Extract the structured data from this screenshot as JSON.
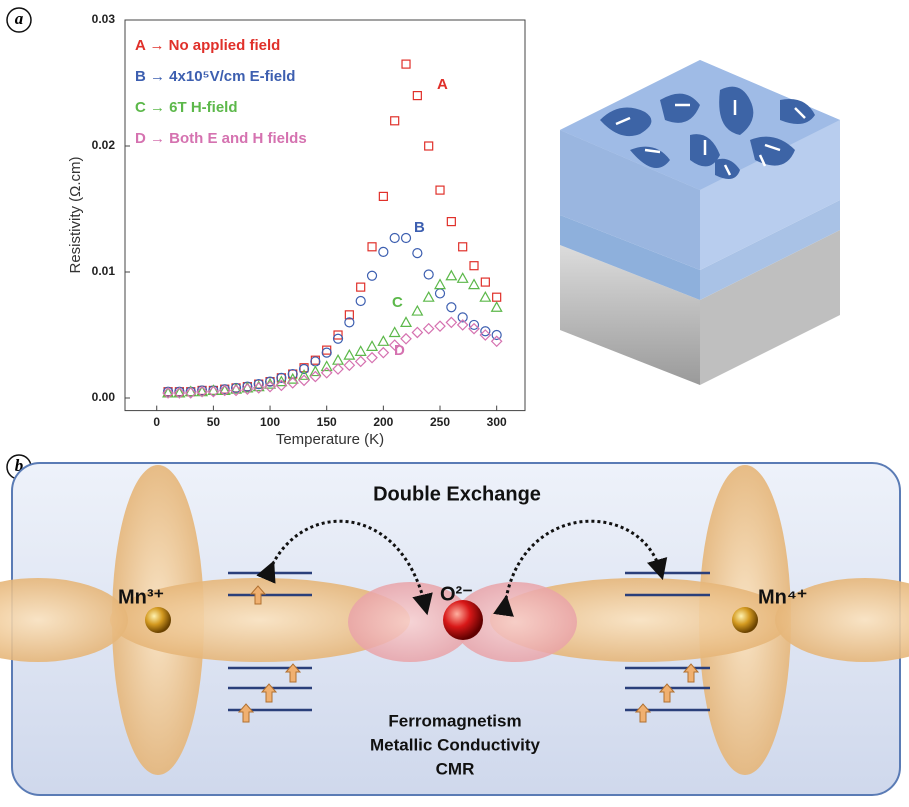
{
  "chart_data": {
    "type": "scatter",
    "xlabel": "Temperature (K)",
    "ylabel": "Resistivity (Ω.cm)",
    "x": [
      10,
      20,
      30,
      40,
      50,
      60,
      70,
      80,
      90,
      100,
      110,
      120,
      130,
      140,
      150,
      160,
      170,
      180,
      190,
      200,
      210,
      220,
      230,
      240,
      250,
      260,
      270,
      280,
      290,
      300
    ],
    "series": [
      {
        "name": "A → No applied field",
        "color": "#e0302a",
        "marker": "square",
        "values": [
          0.0005,
          0.0005,
          0.0005,
          0.0006,
          0.0006,
          0.0007,
          0.0008,
          0.0009,
          0.0011,
          0.0013,
          0.0016,
          0.0019,
          0.0024,
          0.003,
          0.0038,
          0.005,
          0.0066,
          0.0088,
          0.012,
          0.016,
          0.022,
          0.0265,
          0.024,
          0.02,
          0.0165,
          0.014,
          0.012,
          0.0105,
          0.0092,
          0.008
        ]
      },
      {
        "name": "B → 4x10⁵V/cm E-field",
        "color": "#3d5fb0",
        "marker": "circle",
        "values": [
          0.0005,
          0.0005,
          0.0005,
          0.0006,
          0.0006,
          0.0007,
          0.0008,
          0.0009,
          0.0011,
          0.0013,
          0.0016,
          0.0019,
          0.0023,
          0.0029,
          0.0036,
          0.0047,
          0.006,
          0.0077,
          0.0097,
          0.0116,
          0.0127,
          0.0127,
          0.0115,
          0.0098,
          0.0083,
          0.0072,
          0.0064,
          0.0058,
          0.0053,
          0.005
        ]
      },
      {
        "name": "C → 6T H-field",
        "color": "#5cb84a",
        "marker": "triangle",
        "values": [
          0.0004,
          0.0004,
          0.0005,
          0.0005,
          0.0006,
          0.0006,
          0.0007,
          0.0008,
          0.0009,
          0.0011,
          0.0013,
          0.0015,
          0.0018,
          0.0021,
          0.0025,
          0.003,
          0.0034,
          0.0037,
          0.0041,
          0.0045,
          0.0052,
          0.006,
          0.0069,
          0.008,
          0.009,
          0.0097,
          0.0095,
          0.009,
          0.008,
          0.0072
        ]
      },
      {
        "name": "D → Both E and H fields",
        "color": "#d572b0",
        "marker": "diamond",
        "values": [
          0.0004,
          0.0004,
          0.0004,
          0.0005,
          0.0005,
          0.0006,
          0.0006,
          0.0007,
          0.0008,
          0.0009,
          0.001,
          0.0012,
          0.0014,
          0.0017,
          0.002,
          0.0023,
          0.0026,
          0.0029,
          0.0032,
          0.0036,
          0.0042,
          0.0047,
          0.0052,
          0.0055,
          0.0057,
          0.006,
          0.0058,
          0.0055,
          0.005,
          0.0045
        ]
      }
    ],
    "annotations": [
      "A",
      "B",
      "C",
      "D"
    ],
    "xlim": [
      -28,
      325
    ],
    "ylim": [
      -0.001,
      0.03
    ],
    "xticks": [
      0,
      50,
      100,
      150,
      200,
      250,
      300
    ],
    "yticks": [
      {
        "value": 0,
        "label": "0.00"
      },
      0.01,
      0.02,
      0.03
    ],
    "legend": "upper left"
  },
  "panel_labels": [
    "a",
    "b"
  ],
  "diagram": {
    "title": "Double Exchange",
    "left_ion": "Mn³⁺",
    "center_ion": "O²⁻",
    "right_ion": "Mn⁴⁺",
    "properties": [
      "Ferromagnetism",
      "Metallic Conductivity",
      "CMR"
    ]
  }
}
